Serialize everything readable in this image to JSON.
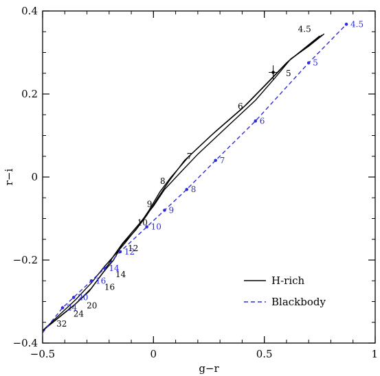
{
  "chart_data": {
    "type": "line",
    "title": "",
    "xlabel": "g−r",
    "ylabel": "r−i",
    "xlim": [
      -0.5,
      1.0
    ],
    "ylim": [
      -0.4,
      0.4
    ],
    "xticks": [
      {
        "value": -0.5,
        "label": "−0.5"
      },
      {
        "value": 0,
        "label": "0"
      },
      {
        "value": 0.5,
        "label": "0.5"
      },
      {
        "value": 1.0,
        "label": "1"
      }
    ],
    "yticks": [
      {
        "value": -0.4,
        "label": "−0.4"
      },
      {
        "value": -0.2,
        "label": "−0.2"
      },
      {
        "value": 0,
        "label": "0"
      },
      {
        "value": 0.2,
        "label": "0.2"
      },
      {
        "value": 0.4,
        "label": "0.4"
      }
    ],
    "x_minor_step": 0.1,
    "y_minor_step": 0.05,
    "grid": false,
    "legend": {
      "placement": "bottom-right",
      "entries": [
        {
          "label": "H-rich",
          "series": "hrich"
        },
        {
          "label": "Blackbody",
          "series": "blackbody"
        }
      ]
    },
    "series": [
      {
        "key": "hrich",
        "name": "H-rich",
        "color": "#000000",
        "style": "solid",
        "lines": [
          [
            [
              -0.5,
              -0.37
            ],
            [
              -0.42,
              -0.335
            ],
            [
              -0.35,
              -0.305
            ],
            [
              -0.28,
              -0.268
            ],
            [
              -0.22,
              -0.225
            ],
            [
              -0.18,
              -0.19
            ],
            [
              -0.14,
              -0.16
            ],
            [
              -0.06,
              -0.11
            ],
            [
              0.0,
              -0.07
            ],
            [
              0.05,
              -0.03
            ],
            [
              0.12,
              0.01
            ],
            [
              0.2,
              0.055
            ],
            [
              0.32,
              0.115
            ],
            [
              0.46,
              0.185
            ],
            [
              0.55,
              0.24
            ],
            [
              0.62,
              0.285
            ],
            [
              0.7,
              0.315
            ],
            [
              0.77,
              0.345
            ]
          ],
          [
            [
              -0.5,
              -0.37
            ],
            [
              -0.42,
              -0.33
            ],
            [
              -0.35,
              -0.295
            ],
            [
              -0.28,
              -0.255
            ],
            [
              -0.22,
              -0.215
            ],
            [
              -0.17,
              -0.185
            ],
            [
              -0.13,
              -0.16
            ],
            [
              -0.07,
              -0.12
            ],
            [
              -0.02,
              -0.08
            ],
            [
              0.03,
              -0.035
            ],
            [
              0.08,
              0.0
            ],
            [
              0.16,
              0.05
            ],
            [
              0.28,
              0.11
            ],
            [
              0.42,
              0.175
            ],
            [
              0.53,
              0.235
            ],
            [
              0.61,
              0.28
            ],
            [
              0.69,
              0.312
            ],
            [
              0.76,
              0.342
            ]
          ],
          [
            [
              -0.5,
              -0.37
            ],
            [
              -0.43,
              -0.34
            ],
            [
              -0.36,
              -0.31
            ],
            [
              -0.29,
              -0.275
            ],
            [
              -0.23,
              -0.232
            ],
            [
              -0.18,
              -0.2
            ],
            [
              -0.14,
              -0.162
            ],
            [
              -0.08,
              -0.128
            ],
            [
              -0.03,
              -0.092
            ],
            [
              0.02,
              -0.05
            ],
            [
              0.07,
              -0.01
            ],
            [
              0.14,
              0.04
            ],
            [
              0.26,
              0.1
            ],
            [
              0.4,
              0.165
            ],
            [
              0.51,
              0.225
            ],
            [
              0.6,
              0.275
            ],
            [
              0.68,
              0.31
            ],
            [
              0.75,
              0.34
            ]
          ]
        ],
        "points": [
          {
            "label": "4.5",
            "x": 0.72,
            "y": 0.34
          },
          {
            "label": "5",
            "x": 0.56,
            "y": 0.25
          },
          {
            "label": "6",
            "x": 0.41,
            "y": 0.17
          },
          {
            "label": "7",
            "x": 0.18,
            "y": 0.05
          },
          {
            "label": "8",
            "x": 0.06,
            "y": -0.01
          },
          {
            "label": "9",
            "x": 0.0,
            "y": -0.065
          },
          {
            "label": "10",
            "x": -0.02,
            "y": -0.11
          },
          {
            "label": "12",
            "x": -0.14,
            "y": -0.175
          },
          {
            "label": "14",
            "x": -0.19,
            "y": -0.225
          },
          {
            "label": "16",
            "x": -0.24,
            "y": -0.255
          },
          {
            "label": "20",
            "x": -0.32,
            "y": -0.3
          },
          {
            "label": "24",
            "x": -0.38,
            "y": -0.32
          },
          {
            "label": "32",
            "x": -0.45,
            "y": -0.35
          }
        ]
      },
      {
        "key": "blackbody",
        "name": "Blackbody",
        "color": "#2b2bd9",
        "style": "dashed",
        "lines": [
          [
            [
              -0.5,
              -0.375
            ],
            [
              -0.41,
              -0.315
            ],
            [
              -0.36,
              -0.29
            ],
            [
              -0.28,
              -0.25
            ],
            [
              -0.22,
              -0.22
            ],
            [
              -0.15,
              -0.18
            ],
            [
              -0.03,
              -0.12
            ],
            [
              0.05,
              -0.08
            ],
            [
              0.15,
              -0.03
            ],
            [
              0.28,
              0.04
            ],
            [
              0.46,
              0.135
            ],
            [
              0.7,
              0.275
            ],
            [
              0.87,
              0.368
            ]
          ]
        ],
        "points": [
          {
            "label": "4.5",
            "x": 0.87,
            "y": 0.368
          },
          {
            "label": "5",
            "x": 0.7,
            "y": 0.275
          },
          {
            "label": "6",
            "x": 0.46,
            "y": 0.135
          },
          {
            "label": "7",
            "x": 0.28,
            "y": 0.04
          },
          {
            "label": "8",
            "x": 0.15,
            "y": -0.03
          },
          {
            "label": "9",
            "x": 0.05,
            "y": -0.08
          },
          {
            "label": "10",
            "x": -0.03,
            "y": -0.12
          },
          {
            "label": "12",
            "x": -0.15,
            "y": -0.18
          },
          {
            "label": "14",
            "x": -0.22,
            "y": -0.22
          },
          {
            "label": "16",
            "x": -0.28,
            "y": -0.25
          },
          {
            "label": "20",
            "x": -0.36,
            "y": -0.29
          },
          {
            "label": "24",
            "x": -0.41,
            "y": -0.315
          }
        ]
      }
    ],
    "observation": {
      "x": 0.54,
      "y": 0.252,
      "xerr": 0.02,
      "yerr": 0.017
    }
  }
}
